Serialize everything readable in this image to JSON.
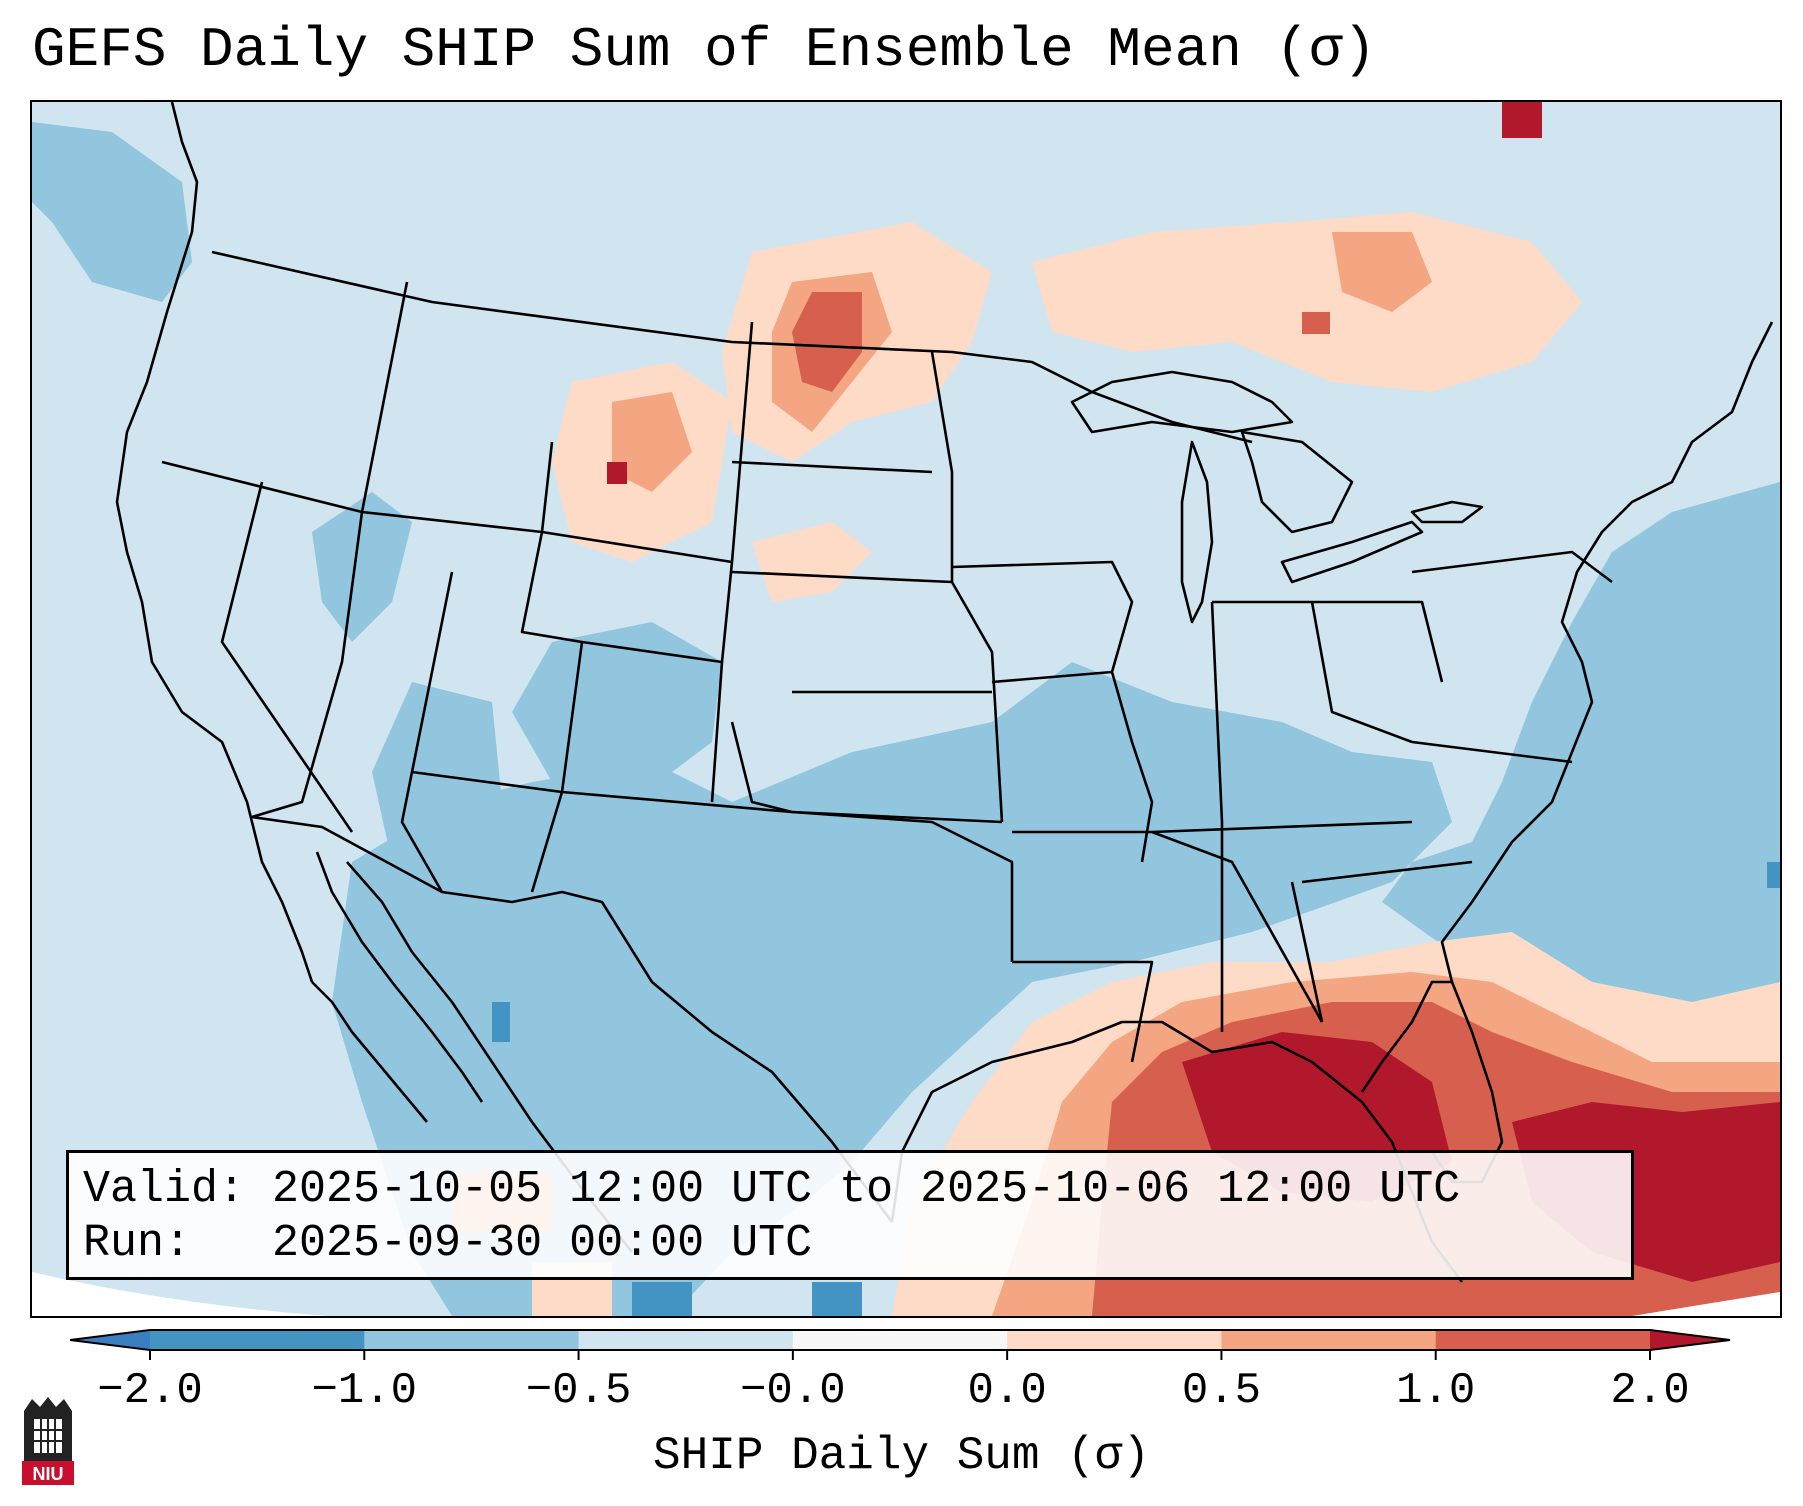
{
  "title": "GEFS Daily SHIP Sum of Ensemble Mean (σ)",
  "info": {
    "valid_line": "Valid: 2025-10-05 12:00 UTC to 2025-10-06 12:00 UTC",
    "run_line": "Run:   2025-09-30 00:00 UTC"
  },
  "colorbar": {
    "label": "SHIP Daily Sum (σ)",
    "ticks": [
      "−2.0",
      "−1.0",
      "−0.5",
      "−0.0",
      "0.0",
      "0.5",
      "1.0",
      "2.0"
    ],
    "colors": {
      "below_min": "#3a7fc0",
      "neg_2_to_1": "#4393c3",
      "neg_1_to_05": "#92c5de",
      "neg_05_to_0": "#d1e5f0",
      "zero": "#f7f7f7",
      "pos_0_to_05": "#fddbc7",
      "pos_05_to_1": "#f4a582",
      "pos_1_to_2": "#d6604d",
      "above_max": "#b2182b"
    }
  },
  "logo": {
    "text": "NIU"
  }
}
